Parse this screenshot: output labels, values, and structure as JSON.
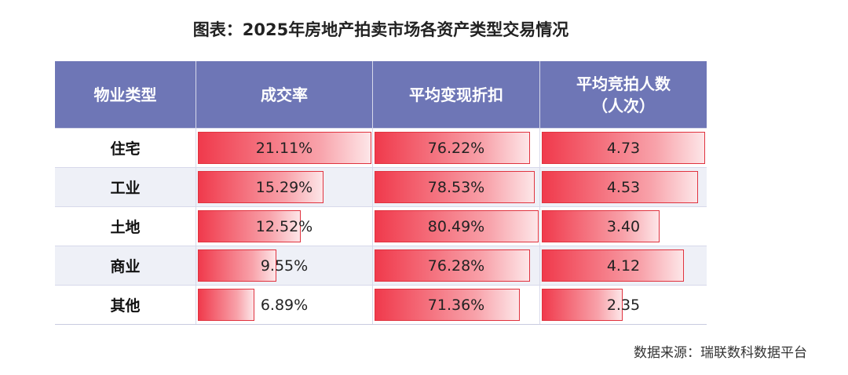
{
  "title": "图表：2025年房地产拍卖市场各资产类型交易情况",
  "source": "数据来源：瑞联数科数据平台",
  "table": {
    "headers": [
      "物业类型",
      "成交率",
      "平均变现折扣",
      "平均竞拍人数\n（人次）"
    ],
    "rows": [
      "住宅",
      "工业",
      "土地",
      "商业",
      "其他"
    ],
    "columns": [
      {
        "values": [
          21.11,
          15.29,
          12.52,
          9.55,
          6.89
        ],
        "value_labels": [
          "21.11%",
          "15.29%",
          "12.52%",
          "9.55%",
          "6.89%"
        ]
      },
      {
        "values": [
          76.22,
          78.53,
          80.49,
          76.28,
          71.36
        ],
        "value_labels": [
          "76.22%",
          "78.53%",
          "80.49%",
          "76.28%",
          "71.36%"
        ]
      },
      {
        "values": [
          4.73,
          4.53,
          3.4,
          4.12,
          2.35
        ],
        "value_labels": [
          "4.73",
          "4.53",
          "3.40",
          "4.12",
          "2.35"
        ]
      }
    ]
  }
}
